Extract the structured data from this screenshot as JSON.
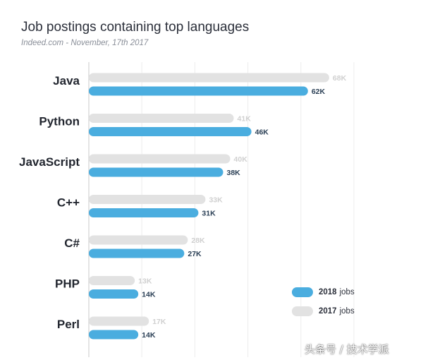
{
  "chart_data": {
    "type": "bar",
    "orientation": "horizontal",
    "title": "Job postings containing top languages",
    "subtitle": "Indeed.com - November, 17th 2017",
    "categories": [
      "Java",
      "Python",
      "JavaScript",
      "C++",
      "C#",
      "PHP",
      "Perl"
    ],
    "series": [
      {
        "name": "2017",
        "suffix": "jobs",
        "color": "#e2e2e2",
        "label_color": "#d0d0d0",
        "values": [
          68,
          41,
          40,
          33,
          28,
          13,
          17
        ],
        "labels": [
          "68K",
          "41K",
          "40K",
          "33K",
          "28K",
          "13K",
          "17K"
        ]
      },
      {
        "name": "2018",
        "suffix": "jobs",
        "color": "#4aaddf",
        "label_color": "#2a3f55",
        "values": [
          62,
          46,
          38,
          31,
          27,
          14,
          14
        ],
        "labels": [
          "62K",
          "46K",
          "38K",
          "31K",
          "27K",
          "14K",
          "14K"
        ]
      }
    ],
    "xlim": [
      0,
      75
    ],
    "xlabel": "",
    "ylabel": ""
  },
  "watermark": "头条号 / 技术学派"
}
